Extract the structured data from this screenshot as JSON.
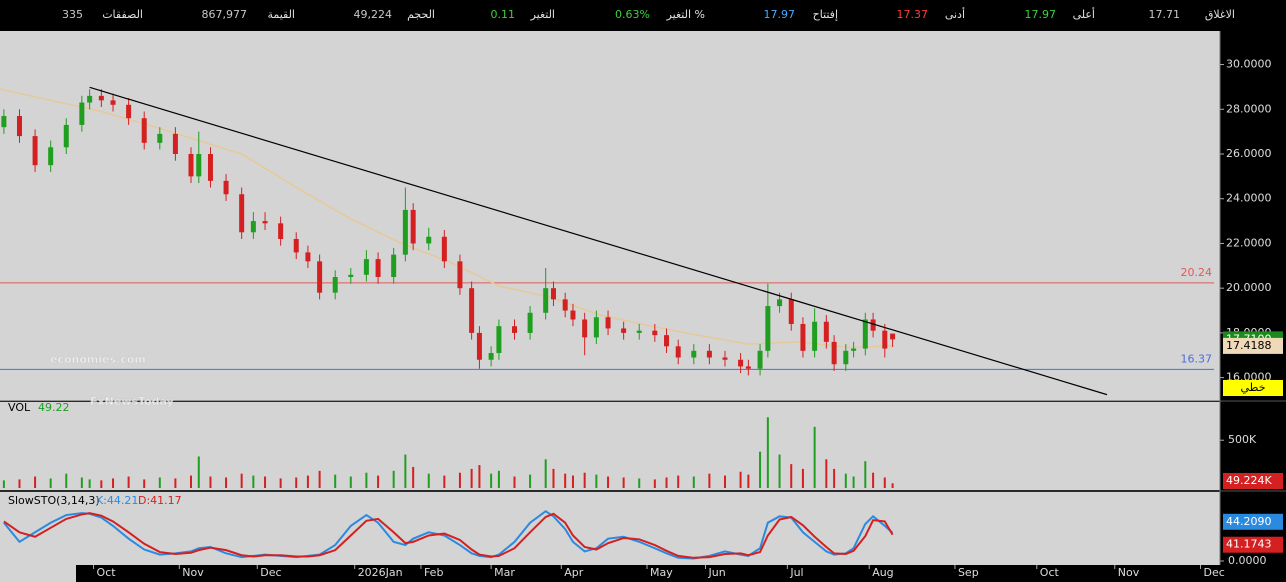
{
  "header": {
    "items": [
      {
        "label": "الاغلاق",
        "value": "17.71",
        "color": "#c8c8c8"
      },
      {
        "label": "أعلى",
        "value": "17.97",
        "color": "#3cd13c"
      },
      {
        "label": "أدنى",
        "value": "17.37",
        "color": "#ff3b3b"
      },
      {
        "label": "إفتتاح",
        "value": "17.97",
        "color": "#4aa8ff"
      },
      {
        "label": "التغير %",
        "value": "0.63%",
        "color": "#3cd13c"
      },
      {
        "label": "التغير",
        "value": "0.11",
        "color": "#3cd13c"
      },
      {
        "label": "الحجم",
        "value": "49,224",
        "color": "#c8c8c8"
      },
      {
        "label": "القيمة",
        "value": "867,977",
        "color": "#c8c8c8"
      },
      {
        "label": "الصفقات",
        "value": "335",
        "color": "#c8c8c8"
      }
    ]
  },
  "watermark": [
    "economies.com",
    "FxNewsToday"
  ],
  "chart_data": [
    {
      "type": "candlestick",
      "xlim": [
        0,
        313
      ],
      "ylim": [
        15,
        31.5
      ],
      "yticks": [
        {
          "value": 30,
          "label": "30.0000"
        },
        {
          "value": 28,
          "label": "28.0000"
        },
        {
          "value": 26,
          "label": "26.0000"
        },
        {
          "value": 24,
          "label": "24.0000"
        },
        {
          "value": 22,
          "label": "22.0000"
        },
        {
          "value": 20,
          "label": "20.0000"
        },
        {
          "value": 18,
          "label": "18.0000"
        },
        {
          "value": 16,
          "label": "16.0000"
        }
      ],
      "xticks": [
        {
          "value": 24,
          "label": "Oct"
        },
        {
          "value": 46,
          "label": "Nov"
        },
        {
          "value": 66,
          "label": "Dec"
        },
        {
          "value": 91,
          "label": "2026Jan"
        },
        {
          "value": 108,
          "label": "Feb"
        },
        {
          "value": 126,
          "label": "Mar"
        },
        {
          "value": 144,
          "label": "Apr"
        },
        {
          "value": 166,
          "label": "May"
        },
        {
          "value": 181,
          "label": "Jun"
        },
        {
          "value": 202,
          "label": "Jul"
        },
        {
          "value": 223,
          "label": "Aug"
        },
        {
          "value": 245,
          "label": "Sep"
        },
        {
          "value": 266,
          "label": "Oct"
        },
        {
          "value": 286,
          "label": "Nov"
        },
        {
          "value": 308,
          "label": "Dec"
        }
      ],
      "up_color": "#1f9e1f",
      "down_color": "#d42020",
      "x": [
        1,
        5,
        9,
        13,
        17,
        21,
        23,
        26,
        29,
        33,
        37,
        41,
        45,
        49,
        51,
        54,
        58,
        62,
        65,
        68,
        72,
        76,
        79,
        82,
        86,
        90,
        94,
        97,
        101,
        104,
        106,
        110,
        114,
        118,
        121,
        123,
        126,
        128,
        132,
        136,
        140,
        142,
        145,
        147,
        150,
        153,
        156,
        160,
        164,
        168,
        171,
        174,
        178,
        182,
        186,
        190,
        192,
        195,
        197,
        200,
        203,
        206,
        209,
        212,
        214,
        217,
        219,
        222,
        224,
        227,
        229
      ],
      "open": [
        27.2,
        27.7,
        26.8,
        25.5,
        26.3,
        27.3,
        28.3,
        28.6,
        28.4,
        28.2,
        27.6,
        26.5,
        26.9,
        26.0,
        25.0,
        26.0,
        24.8,
        24.2,
        22.5,
        23.0,
        22.9,
        22.2,
        21.6,
        21.2,
        19.8,
        20.5,
        20.6,
        21.3,
        20.5,
        21.5,
        23.5,
        22.0,
        22.3,
        21.2,
        20.0,
        18.0,
        16.8,
        17.1,
        18.3,
        18.0,
        18.9,
        20.0,
        19.5,
        19.0,
        18.6,
        17.8,
        18.7,
        18.2,
        18.0,
        18.1,
        17.9,
        17.4,
        16.9,
        17.2,
        16.9,
        16.8,
        16.5,
        16.4,
        17.2,
        19.2,
        19.5,
        18.4,
        17.2,
        18.5,
        17.6,
        16.6,
        17.2,
        17.3,
        18.6,
        18.1,
        17.97
      ],
      "high": [
        28.0,
        28.0,
        27.1,
        26.6,
        27.6,
        28.6,
        28.9,
        28.9,
        28.7,
        28.5,
        27.9,
        27.2,
        27.2,
        26.3,
        27.0,
        26.3,
        25.1,
        24.5,
        23.4,
        23.4,
        23.2,
        22.5,
        21.9,
        21.5,
        20.8,
        20.9,
        21.7,
        21.6,
        21.8,
        24.5,
        23.8,
        22.7,
        22.6,
        21.5,
        20.3,
        18.3,
        17.4,
        18.6,
        18.6,
        19.2,
        20.9,
        20.3,
        19.8,
        19.3,
        18.9,
        19.0,
        19.0,
        18.5,
        18.4,
        18.4,
        18.2,
        17.7,
        17.5,
        17.5,
        17.2,
        17.1,
        16.8,
        17.5,
        20.2,
        19.8,
        19.8,
        18.7,
        19.1,
        18.8,
        17.9,
        17.5,
        17.6,
        18.9,
        18.9,
        18.4,
        17.97
      ],
      "low": [
        26.9,
        26.5,
        25.2,
        25.2,
        26.0,
        27.0,
        28.0,
        28.1,
        27.9,
        27.3,
        26.2,
        26.2,
        25.7,
        24.7,
        24.7,
        24.5,
        23.9,
        22.2,
        22.2,
        22.6,
        21.9,
        21.3,
        20.9,
        19.5,
        19.5,
        20.2,
        20.3,
        20.2,
        20.2,
        21.2,
        21.7,
        21.7,
        20.9,
        19.7,
        17.7,
        16.4,
        16.5,
        16.8,
        17.7,
        17.7,
        18.6,
        19.2,
        18.7,
        18.3,
        17.0,
        17.5,
        17.9,
        17.7,
        17.7,
        17.6,
        17.1,
        16.6,
        16.6,
        16.6,
        16.5,
        16.2,
        16.1,
        16.1,
        16.9,
        18.9,
        18.1,
        16.9,
        16.9,
        17.3,
        16.3,
        16.3,
        16.9,
        17.0,
        17.8,
        16.9,
        17.37
      ],
      "close": [
        27.7,
        26.8,
        25.5,
        26.3,
        27.3,
        28.3,
        28.6,
        28.4,
        28.2,
        27.6,
        26.5,
        26.9,
        26.0,
        25.0,
        26.0,
        24.8,
        24.2,
        22.5,
        23.0,
        22.9,
        22.2,
        21.6,
        21.2,
        19.8,
        20.5,
        20.6,
        21.3,
        20.5,
        21.5,
        23.5,
        22.0,
        22.3,
        21.2,
        20.0,
        18.0,
        16.8,
        17.1,
        18.3,
        18.0,
        18.9,
        20.0,
        19.5,
        19.0,
        18.6,
        17.8,
        18.7,
        18.2,
        18.0,
        18.1,
        17.9,
        17.4,
        16.9,
        17.2,
        16.9,
        16.8,
        16.5,
        16.4,
        17.2,
        19.2,
        19.5,
        18.4,
        17.2,
        18.5,
        17.6,
        16.6,
        17.2,
        17.3,
        18.6,
        18.1,
        17.3,
        17.71
      ],
      "moving_average": {
        "color": "#e6c999",
        "x": [
          0,
          13,
          26,
          38,
          51,
          62,
          77,
          90,
          103,
          115,
          128,
          141,
          154,
          167,
          179,
          192,
          205,
          218,
          229
        ],
        "values": [
          28.9,
          28.4,
          27.9,
          27.3,
          26.6,
          26.0,
          24.4,
          23.1,
          22.0,
          21.2,
          20.1,
          19.6,
          18.8,
          18.3,
          17.9,
          17.5,
          17.6,
          17.35,
          17.4188
        ]
      },
      "trendline": {
        "color": "#000000",
        "x": [
          23,
          284
        ],
        "values": [
          28.98,
          15.24
        ],
        "label": "خطي"
      },
      "hlines": [
        {
          "value": 20.24,
          "color": "#e05a5a"
        },
        {
          "value": 16.37,
          "color": "#4a6ee0"
        }
      ],
      "price_markers": [
        {
          "value": 17.71,
          "label": "17.7100",
          "color": "#1a8a1a",
          "text_color": "#ffffff"
        },
        {
          "value": 17.4188,
          "label": "17.4188",
          "color": "#efd9b8",
          "text_color": "#000000"
        }
      ]
    },
    {
      "type": "bar",
      "title": "VOL",
      "title_value": "49.22",
      "ylim": [
        0,
        900000
      ],
      "yticks": [
        {
          "value": 500000,
          "label": "500K"
        }
      ],
      "values": [
        80000,
        90000,
        120000,
        100000,
        150000,
        110000,
        90000,
        80000,
        100000,
        120000,
        90000,
        110000,
        100000,
        130000,
        330000,
        120000,
        110000,
        150000,
        130000,
        120000,
        100000,
        110000,
        130000,
        180000,
        140000,
        120000,
        160000,
        130000,
        180000,
        350000,
        220000,
        150000,
        130000,
        160000,
        200000,
        240000,
        150000,
        180000,
        120000,
        140000,
        300000,
        200000,
        150000,
        130000,
        160000,
        140000,
        120000,
        110000,
        100000,
        90000,
        110000,
        130000,
        120000,
        150000,
        130000,
        170000,
        140000,
        380000,
        740000,
        350000,
        250000,
        200000,
        640000,
        300000,
        200000,
        150000,
        120000,
        280000,
        160000,
        110000,
        49224
      ],
      "last_value_label": "49.224K",
      "last_color": "#d42020"
    },
    {
      "type": "line",
      "title": "SlowSTO(3,14,3)",
      "ylim": [
        0,
        105
      ],
      "yticks": [
        {
          "value": 0,
          "label": "0.0000"
        }
      ],
      "series": [
        {
          "name": "K:44.21",
          "color": "#2a8ae0",
          "last_value_label": "44.2090",
          "values": [
            60,
            30,
            45,
            60,
            72,
            75,
            74,
            68,
            55,
            35,
            18,
            10,
            12,
            15,
            20,
            22,
            12,
            6,
            8,
            10,
            8,
            6,
            8,
            10,
            25,
            55,
            72,
            60,
            30,
            25,
            35,
            45,
            40,
            25,
            12,
            8,
            6,
            10,
            30,
            60,
            78,
            70,
            50,
            30,
            15,
            20,
            35,
            38,
            30,
            20,
            12,
            5,
            4,
            8,
            15,
            10,
            8,
            20,
            60,
            70,
            68,
            45,
            30,
            15,
            10,
            12,
            20,
            58,
            70,
            55,
            44.209
          ]
        },
        {
          "name": "D:41.17",
          "color": "#d42020",
          "last_value_label": "41.1743",
          "values": [
            62,
            45,
            38,
            52,
            66,
            73,
            75,
            71,
            62,
            45,
            27,
            14,
            11,
            13,
            17,
            21,
            17,
            9,
            7,
            9,
            9,
            7,
            7,
            9,
            17,
            40,
            63,
            66,
            45,
            28,
            30,
            40,
            43,
            33,
            18,
            10,
            7,
            8,
            20,
            45,
            69,
            74,
            60,
            40,
            22,
            18,
            28,
            36,
            34,
            25,
            16,
            8,
            5,
            6,
            11,
            12,
            9,
            14,
            40,
            65,
            69,
            56,
            38,
            22,
            12,
            11,
            16,
            39,
            64,
            62,
            41.1743
          ]
        }
      ]
    }
  ]
}
